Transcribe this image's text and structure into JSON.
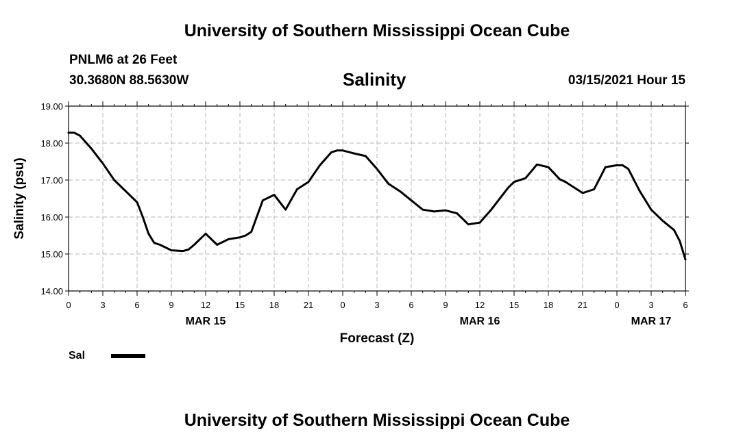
{
  "header": {
    "title": "University of Southern Mississippi Ocean Cube",
    "station": "PNLM6 at 26 Feet",
    "coords": "30.3680N 88.5630W",
    "chart_title": "Salinity",
    "timestamp": "03/15/2021 Hour 15"
  },
  "footer": {
    "title": "University of Southern Mississippi Ocean Cube"
  },
  "legend": {
    "label": "Sal"
  },
  "chart_data": {
    "type": "line",
    "title": "Salinity",
    "xlabel": "Forecast (Z)",
    "ylabel": "Salinity (psu)",
    "ylim": [
      14.0,
      19.0
    ],
    "xlim": [
      0,
      54
    ],
    "grid": true,
    "line_color": "#000000",
    "y_ticks": [
      "14.00",
      "15.00",
      "16.00",
      "17.00",
      "18.00",
      "19.00"
    ],
    "x_tick_labels": [
      "0",
      "3",
      "6",
      "9",
      "12",
      "15",
      "18",
      "21",
      "0",
      "3",
      "6",
      "9",
      "12",
      "15",
      "18",
      "21",
      "0",
      "3",
      "6"
    ],
    "date_labels": [
      {
        "label": "MAR 15",
        "hour": 12
      },
      {
        "label": "MAR 16",
        "hour": 36
      },
      {
        "label": "MAR 17",
        "hour": 51
      }
    ],
    "series": [
      {
        "name": "Sal",
        "x": [
          0,
          0.5,
          1,
          2,
          3,
          4,
          5,
          6,
          6.5,
          7,
          7.5,
          8,
          9,
          10,
          10.5,
          11,
          12,
          13,
          14,
          15,
          15.5,
          16,
          17,
          18,
          18.5,
          19,
          20,
          21,
          22,
          23,
          23.5,
          24,
          25,
          26,
          27,
          28,
          29,
          30,
          31,
          32,
          33,
          34,
          35,
          36,
          37,
          38,
          38.5,
          39,
          40,
          41,
          42,
          43,
          43.5,
          44,
          45,
          46,
          47,
          48,
          48.5,
          49,
          50,
          51,
          52,
          53,
          53.5,
          54
        ],
        "values": [
          18.28,
          18.28,
          18.2,
          17.85,
          17.45,
          17.0,
          16.7,
          16.4,
          16.0,
          15.55,
          15.3,
          15.25,
          15.1,
          15.08,
          15.12,
          15.25,
          15.55,
          15.25,
          15.4,
          15.45,
          15.5,
          15.6,
          16.45,
          16.6,
          16.4,
          16.2,
          16.75,
          16.95,
          17.4,
          17.75,
          17.8,
          17.8,
          17.72,
          17.65,
          17.3,
          16.9,
          16.7,
          16.45,
          16.2,
          16.15,
          16.18,
          16.1,
          15.8,
          15.85,
          16.2,
          16.6,
          16.8,
          16.95,
          17.05,
          17.42,
          17.35,
          17.02,
          16.95,
          16.85,
          16.65,
          16.75,
          17.35,
          17.4,
          17.4,
          17.3,
          16.7,
          16.2,
          15.9,
          15.65,
          15.35,
          14.85
        ]
      }
    ]
  }
}
